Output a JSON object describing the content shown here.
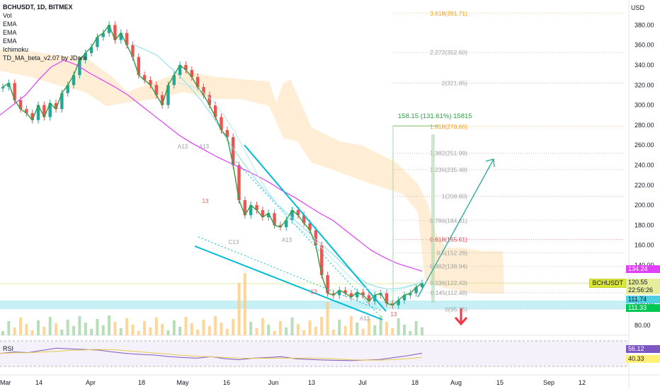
{
  "header": {
    "title": "BCHUSDT, 1D, BITMEX",
    "indicators": [
      "Vol",
      "EMA",
      "EMA",
      "EMA",
      "Ichimoku",
      "TD_MA_beta_v2.07 by JDam"
    ]
  },
  "axis": {
    "currency": "USD"
  },
  "chart_data": {
    "type": "line",
    "symbol": "BCHUSDT",
    "timeframe": "1D",
    "exchange": "BITMEX",
    "x_ticks": [
      "Mar",
      "14",
      "Apr",
      "18",
      "May",
      "16",
      "Jun",
      "13",
      "Jul",
      "18",
      "Aug",
      "15",
      "Sep",
      "12"
    ],
    "y_ticks": [
      80,
      100,
      120,
      140,
      160,
      180,
      200,
      220,
      240,
      260,
      280,
      300,
      320,
      340,
      360,
      380
    ],
    "ylim": [
      70,
      405
    ],
    "series": [
      {
        "values": [
          318,
          322,
          305,
          296,
          292,
          285,
          300,
          288,
          302,
          296,
          312,
          320,
          330,
          345,
          352,
          358,
          368,
          372,
          380,
          365,
          372,
          360,
          348,
          330,
          325,
          320,
          310,
          300,
          320,
          330,
          340,
          335,
          328,
          318,
          310,
          300,
          288,
          275,
          268,
          240,
          205,
          190,
          200,
          195,
          188,
          192,
          180,
          178,
          185,
          195,
          190,
          182,
          175,
          160,
          130,
          112,
          110,
          115,
          112,
          108,
          113,
          110,
          104,
          110,
          112,
          102,
          100,
          105,
          110,
          112,
          118,
          122
        ]
      },
      {
        "values": [
          290,
          300,
          310,
          325,
          338,
          345,
          340,
          332,
          325,
          318,
          310,
          300,
          290,
          280,
          270,
          262,
          255,
          248,
          242,
          236,
          230,
          223,
          215,
          208,
          200,
          192,
          185,
          175,
          165,
          155,
          148,
          142,
          138,
          134
        ]
      },
      {
        "values": [
          360,
          355,
          350,
          340,
          330,
          318,
          305,
          290,
          272,
          255,
          240,
          225,
          212,
          200,
          190,
          180,
          170,
          160,
          150,
          140,
          130,
          122,
          118,
          116,
          117,
          120,
          123
        ]
      },
      {
        "values": [
          322,
          320,
          315,
          305,
          290,
          272,
          250,
          228,
          210,
          195,
          182,
          172,
          162,
          150,
          138,
          126,
          118,
          114,
          113,
          115,
          119,
          123
        ]
      }
    ],
    "fib_levels": [
      {
        "ratio": "0",
        "price": "95.75"
      },
      {
        "ratio": "0.145",
        "price": "112.48"
      },
      {
        "ratio": "0.236",
        "price": "122.43"
      },
      {
        "ratio": "0.382",
        "price": "138.94"
      },
      {
        "ratio": "0.5",
        "price": "152.28"
      },
      {
        "ratio": "0.618",
        "price": "165.61"
      },
      {
        "ratio": "0.786",
        "price": "184.61"
      },
      {
        "ratio": "1",
        "price": "208.80"
      },
      {
        "ratio": "1.236",
        "price": "235.48"
      },
      {
        "ratio": "1.382",
        "price": "251.99"
      },
      {
        "ratio": "1.618",
        "price": "278.66"
      },
      {
        "ratio": "2",
        "price": "321.85"
      },
      {
        "ratio": "2.272",
        "price": "352.60"
      },
      {
        "ratio": "3.618",
        "price": "391.71"
      }
    ],
    "measure_label": "158.15 (131.61%) 15815",
    "annotations": [
      "A13",
      "13",
      "A13",
      "C13",
      "A13",
      "13",
      "A13",
      "13"
    ],
    "rsi_ylim": [
      0,
      100
    ],
    "rsi_values": [
      55,
      60,
      58,
      65,
      72,
      70,
      68,
      66,
      60,
      55,
      52,
      50,
      45,
      42,
      40,
      45,
      38,
      35,
      40,
      42,
      45,
      38,
      36,
      34,
      33,
      32,
      34,
      36,
      42,
      48,
      56
    ]
  },
  "price_labels": {
    "ema_slow": "134.24",
    "current": "120.55",
    "countdown": "22:56:26",
    "support_top": "111.74",
    "support_bottom": "111.33"
  },
  "rsi": {
    "label": "RSI",
    "value": "56.12",
    "ma_value": "40.33"
  },
  "colors": {
    "up": "#26a69a",
    "down": "#ef5350",
    "ema_fast": "#2ea043",
    "ema_mid": "#80deea",
    "ema_slow": "#e040fb",
    "cloud": "#ffe0b2",
    "channel": "#00bcd4",
    "arrow_up": "#26a69a",
    "arrow_down": "#f23645",
    "fib_red": "#f23645",
    "fib_orange": "#ff9800",
    "rsi": "#7e57c2"
  }
}
